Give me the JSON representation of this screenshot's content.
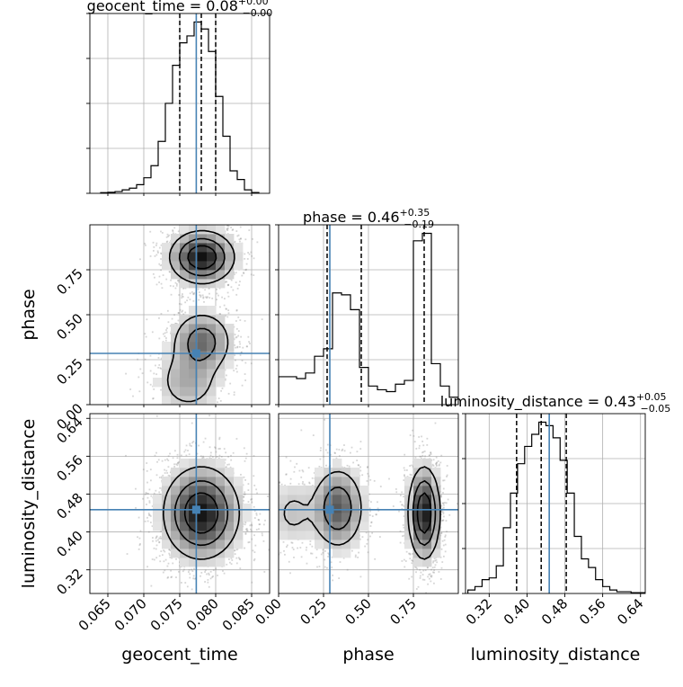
{
  "chart_data": {
    "type": "corner",
    "parameters": [
      "geocent_time",
      "phase",
      "luminosity_distance"
    ],
    "truths": [
      0.0773,
      0.285,
      0.447
    ],
    "truth_color": "#4682b4",
    "ranges": [
      [
        0.0625,
        0.0875
      ],
      [
        0.0,
        1.0
      ],
      [
        0.27,
        0.65
      ]
    ],
    "ticks": [
      [
        "0.065",
        "0.070",
        "0.075",
        "0.080",
        "0.085"
      ],
      [
        "0.00",
        "0.25",
        "0.50",
        "0.75"
      ],
      [
        "0.32",
        "0.40",
        "0.48",
        "0.56",
        "0.64"
      ]
    ],
    "titles": [
      {
        "param": "geocent_time",
        "median": "0.08",
        "plus": "+0.00",
        "minus": "−0.00"
      },
      {
        "param": "phase",
        "median": "0.46",
        "plus": "+0.35",
        "minus": "−0.19"
      },
      {
        "param": "luminosity_distance",
        "median": "0.43",
        "plus": "+0.05",
        "minus": "−0.05"
      }
    ],
    "quantiles": [
      [
        0.075,
        0.078,
        0.08
      ],
      [
        0.27,
        0.46,
        0.81
      ],
      [
        0.378,
        0.43,
        0.483
      ]
    ],
    "histograms": [
      {
        "bins": [
          0.064,
          0.065,
          0.066,
          0.067,
          0.068,
          0.069,
          0.07,
          0.071,
          0.072,
          0.073,
          0.074,
          0.075,
          0.076,
          0.077,
          0.078,
          0.079,
          0.08,
          0.081,
          0.082,
          0.083,
          0.084,
          0.085,
          0.086
        ],
        "counts": [
          0.4,
          0.6,
          1,
          2,
          3,
          5,
          9,
          16,
          30,
          52,
          74,
          87,
          91,
          99,
          95,
          82,
          56,
          33,
          13,
          8,
          2,
          0.5
        ]
      },
      {
        "bins": [
          0.0,
          0.05,
          0.1,
          0.15,
          0.2,
          0.25,
          0.3,
          0.35,
          0.4,
          0.45,
          0.5,
          0.55,
          0.6,
          0.65,
          0.7,
          0.75,
          0.8,
          0.85,
          0.9,
          0.95,
          1.0
        ],
        "counts": [
          15,
          15,
          14,
          17,
          26,
          30,
          60,
          59,
          51,
          20,
          10,
          8,
          7,
          11,
          13,
          88,
          92,
          22,
          10,
          4
        ]
      },
      {
        "bins": [
          0.275,
          0.29,
          0.305,
          0.32,
          0.335,
          0.35,
          0.365,
          0.38,
          0.395,
          0.41,
          0.425,
          0.44,
          0.455,
          0.47,
          0.485,
          0.5,
          0.515,
          0.53,
          0.545,
          0.56,
          0.575,
          0.59,
          0.605,
          0.62,
          0.635,
          0.65
        ],
        "counts": [
          2,
          4,
          8,
          9,
          16,
          38,
          58,
          75,
          85,
          92,
          99,
          97,
          90,
          77,
          58,
          33,
          20,
          15,
          8,
          4,
          2,
          1,
          1,
          0.5,
          0.5
        ]
      }
    ],
    "blobs": {
      "1_0": [
        {
          "x": 0.0781,
          "y": 0.82,
          "sx": 0.0023,
          "sy": 0.075,
          "w": 1.0
        },
        {
          "x": 0.0781,
          "y": 0.35,
          "sx": 0.0022,
          "sy": 0.09,
          "w": 0.55
        },
        {
          "x": 0.0762,
          "y": 0.13,
          "sx": 0.0025,
          "sy": 0.1,
          "w": 0.28
        }
      ],
      "2_0": [
        {
          "x": 0.078,
          "y": 0.44,
          "sx": 0.0027,
          "sy": 0.05,
          "w": 1.0
        }
      ],
      "2_1": [
        {
          "x": 0.81,
          "y": 0.44,
          "sx": 0.045,
          "sy": 0.05,
          "w": 1.0
        },
        {
          "x": 0.33,
          "y": 0.45,
          "sx": 0.075,
          "sy": 0.045,
          "w": 0.65
        },
        {
          "x": 0.08,
          "y": 0.44,
          "sx": 0.08,
          "sy": 0.04,
          "w": 0.18
        }
      ]
    }
  }
}
